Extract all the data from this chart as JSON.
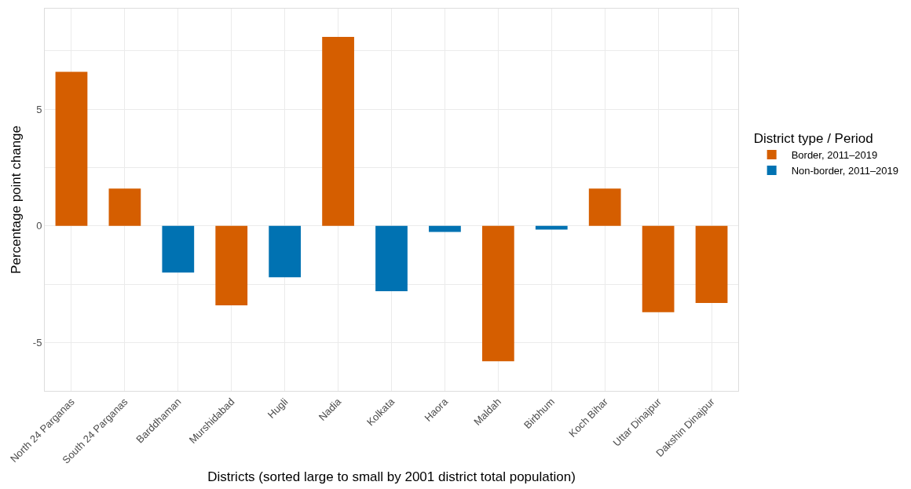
{
  "chart_data": {
    "type": "bar",
    "xlabel": "Districts (sorted large to small by 2001 district total population)",
    "ylabel": "Percentage point change",
    "legend_title": "District type / Period",
    "categories": [
      "North 24 Parganas",
      "South 24 Parganas",
      "Barddhaman",
      "Murshidabad",
      "Hugli",
      "Nadia",
      "Kolkata",
      "Haora",
      "Maldah",
      "Birbhum",
      "Koch Bihar",
      "Uttar Dinajpur",
      "Dakshin Dinajpur"
    ],
    "series": [
      {
        "name": "Border, 2011–2019",
        "color": "#d55e00",
        "values": [
          6.6,
          1.6,
          null,
          -3.4,
          null,
          8.1,
          null,
          null,
          -5.8,
          null,
          1.6,
          -3.7,
          -3.3
        ]
      },
      {
        "name": "Non-border, 2011–2019",
        "color": "#0072b2",
        "values": [
          null,
          null,
          -2.0,
          null,
          -2.2,
          null,
          -2.8,
          -0.26,
          null,
          -0.16,
          null,
          null,
          null
        ]
      }
    ],
    "ylim": [
      -7.07,
      9.31
    ],
    "yticks": [
      -5,
      {
        "value": -2.5,
        "label": null
      },
      0,
      {
        "value": 2.5,
        "label": null
      },
      5,
      {
        "value": 7.5,
        "label": null
      }
    ],
    "grid": true,
    "legend": "right"
  }
}
